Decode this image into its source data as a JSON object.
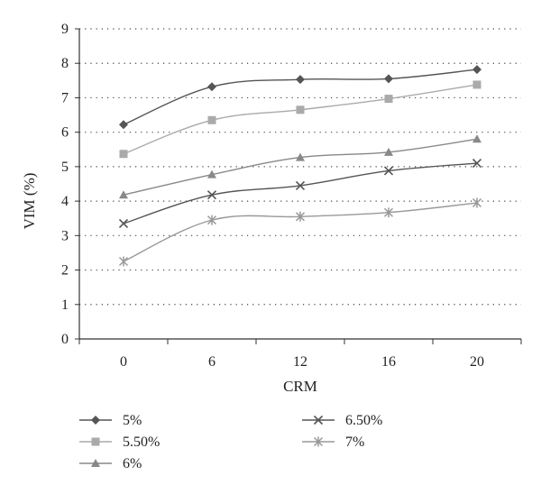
{
  "chart_data": {
    "type": "line",
    "categories": [
      "0",
      "6",
      "12",
      "16",
      "20"
    ],
    "xlabel": "CRM",
    "ylabel": "VIM (%)",
    "ylim": [
      0,
      9
    ],
    "yticks": [
      0,
      1,
      2,
      3,
      4,
      5,
      6,
      7,
      8,
      9
    ],
    "grid": "horizontal-dotted",
    "legend": "bottom",
    "series": [
      {
        "name": "5%",
        "marker": "diamond",
        "color": "#555555",
        "values": [
          6.22,
          7.32,
          7.53,
          7.55,
          7.82
        ]
      },
      {
        "name": "5.50%",
        "marker": "square",
        "color": "#aaaaaa",
        "values": [
          5.37,
          6.35,
          6.65,
          6.97,
          7.38
        ]
      },
      {
        "name": "6%",
        "marker": "triangle",
        "color": "#888888",
        "values": [
          4.18,
          4.77,
          5.27,
          5.42,
          5.8
        ]
      },
      {
        "name": "6.50%",
        "marker": "x",
        "color": "#555555",
        "values": [
          3.35,
          4.18,
          4.45,
          4.88,
          5.1
        ]
      },
      {
        "name": "7%",
        "marker": "star",
        "color": "#999999",
        "values": [
          2.25,
          3.45,
          3.55,
          3.67,
          3.95
        ]
      }
    ]
  }
}
